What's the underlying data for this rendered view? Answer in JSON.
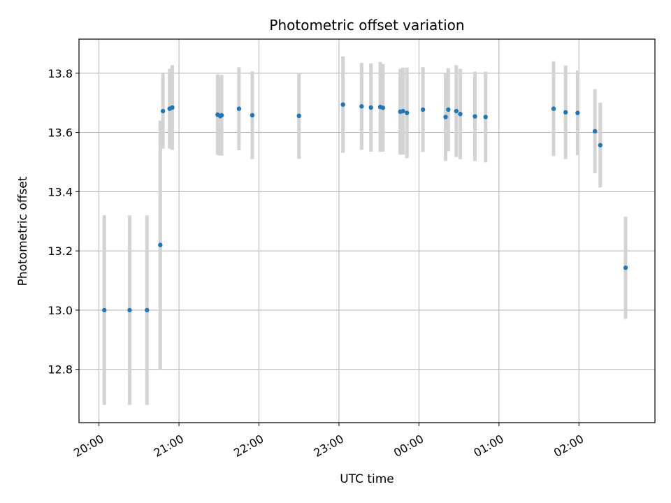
{
  "chart_data": {
    "type": "scatter",
    "title": "Photometric offset variation",
    "xlabel": "UTC time",
    "ylabel": "Photometric offset",
    "x_ticks": [
      {
        "x": "20:00",
        "label": "20:00"
      },
      {
        "x": "21:00",
        "label": "21:00"
      },
      {
        "x": "22:00",
        "label": "22:00"
      },
      {
        "x": "23:00",
        "label": "23:00"
      },
      {
        "x": "00:00",
        "label": "00:00"
      },
      {
        "x": "01:00",
        "label": "01:00"
      },
      {
        "x": "02:00",
        "label": "02:00"
      }
    ],
    "y_ticks": [
      12.8,
      13.0,
      13.2,
      13.4,
      13.6,
      13.8
    ],
    "y_tick_labels": [
      "12.8",
      "13.0",
      "13.2",
      "13.4",
      "13.6",
      "13.8"
    ],
    "xlim": [
      "19:45",
      "02:57"
    ],
    "ylim": [
      12.62,
      13.915
    ],
    "grid": true,
    "colors": {
      "point": "#1f77b4",
      "errorbar": "#d3d3d3",
      "grid": "#b0b0b0"
    },
    "points": [
      {
        "x": "20:04",
        "y": 13.0,
        "err": 0.32
      },
      {
        "x": "20:23",
        "y": 13.0,
        "err": 0.32
      },
      {
        "x": "20:36",
        "y": 13.0,
        "err": 0.32
      },
      {
        "x": "20:46",
        "y": 13.22,
        "err": 0.42
      },
      {
        "x": "20:48",
        "y": 13.672,
        "err": 0.127
      },
      {
        "x": "20:53",
        "y": 13.68,
        "err": 0.135
      },
      {
        "x": "20:55",
        "y": 13.684,
        "err": 0.143
      },
      {
        "x": "21:29",
        "y": 13.66,
        "err": 0.136
      },
      {
        "x": "21:31",
        "y": 13.655,
        "err": 0.133
      },
      {
        "x": "21:32",
        "y": 13.658,
        "err": 0.136
      },
      {
        "x": "21:45",
        "y": 13.68,
        "err": 0.14
      },
      {
        "x": "21:55",
        "y": 13.658,
        "err": 0.148
      },
      {
        "x": "22:30",
        "y": 13.656,
        "err": 0.145
      },
      {
        "x": "23:03",
        "y": 13.694,
        "err": 0.163
      },
      {
        "x": "23:17",
        "y": 13.688,
        "err": 0.147
      },
      {
        "x": "23:24",
        "y": 13.684,
        "err": 0.149
      },
      {
        "x": "23:31",
        "y": 13.686,
        "err": 0.152
      },
      {
        "x": "23:33",
        "y": 13.683,
        "err": 0.148
      },
      {
        "x": "23:46",
        "y": 13.67,
        "err": 0.145
      },
      {
        "x": "23:48",
        "y": 13.672,
        "err": 0.147
      },
      {
        "x": "23:51",
        "y": 13.666,
        "err": 0.153
      },
      {
        "x": "00:03",
        "y": 13.677,
        "err": 0.143
      },
      {
        "x": "00:20",
        "y": 13.652,
        "err": 0.149
      },
      {
        "x": "00:22",
        "y": 13.677,
        "err": 0.14
      },
      {
        "x": "00:28",
        "y": 13.672,
        "err": 0.155
      },
      {
        "x": "00:31",
        "y": 13.662,
        "err": 0.153
      },
      {
        "x": "00:42",
        "y": 13.654,
        "err": 0.151
      },
      {
        "x": "00:50",
        "y": 13.652,
        "err": 0.153
      },
      {
        "x": "01:41",
        "y": 13.68,
        "err": 0.16
      },
      {
        "x": "01:50",
        "y": 13.668,
        "err": 0.158
      },
      {
        "x": "01:59",
        "y": 13.666,
        "err": 0.143
      },
      {
        "x": "02:12",
        "y": 13.604,
        "err": 0.142
      },
      {
        "x": "02:16",
        "y": 13.557,
        "err": 0.143
      },
      {
        "x": "02:35",
        "y": 13.143,
        "err": 0.172
      }
    ]
  }
}
